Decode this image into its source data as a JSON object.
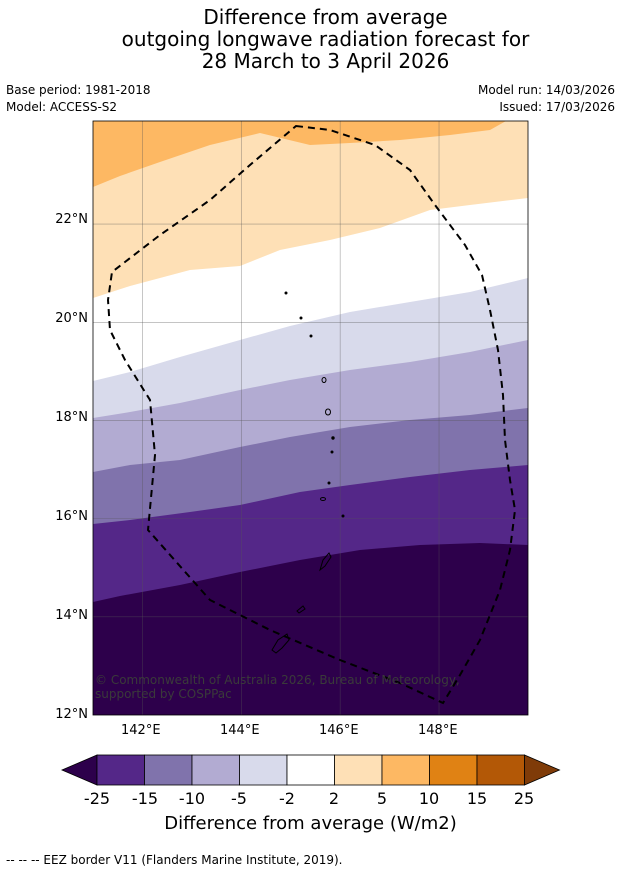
{
  "title": {
    "line1": "Difference from average",
    "line2": "outgoing longwave radiation forecast for",
    "line3": "28 March to 3 April 2026"
  },
  "meta": {
    "base_period": "Base period: 1981-2018",
    "model": "Model: ACCESS-S2",
    "model_run": "Model run: 14/03/2026",
    "issued": "Issued: 17/03/2026"
  },
  "map": {
    "lat_labels": [
      "22°N",
      "20°N",
      "18°N",
      "16°N",
      "14°N",
      "12°N"
    ],
    "lon_labels": [
      "142°E",
      "144°E",
      "146°E",
      "148°E"
    ],
    "lat_range": [
      12,
      24.1
    ],
    "lon_range": [
      141,
      149.8
    ],
    "copyright": "© Commonwealth of Australia 2026, Bureau of Meteorology, supported by COSPPac"
  },
  "colorbar": {
    "tick_labels": [
      "-25",
      "-15",
      "-10",
      "-5",
      "-2",
      "2",
      "5",
      "10",
      "15",
      "25"
    ],
    "colors": [
      "#2d004b",
      "#542788",
      "#8073ac",
      "#b2abd2",
      "#d8daeb",
      "#ffffff",
      "#fee0b6",
      "#fdb863",
      "#e08214",
      "#b35806",
      "#7f3b08"
    ],
    "label": "Difference from average (W/m2)"
  },
  "footnote": "-- -- -- EEZ border V11 (Flanders Marine Institute, 2019)."
}
